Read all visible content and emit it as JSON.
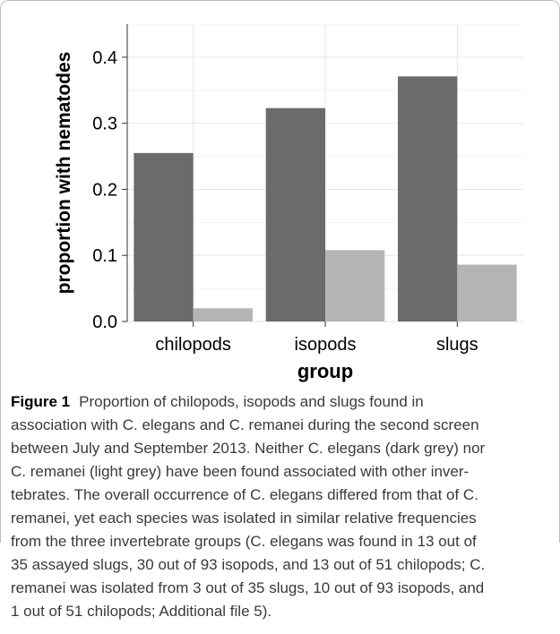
{
  "chart_data": {
    "type": "bar",
    "categories": [
      "chilopods",
      "isopods",
      "slugs"
    ],
    "series": [
      {
        "name": "C. elegans",
        "color": "#6b6b6b",
        "values": [
          0.255,
          0.323,
          0.371
        ]
      },
      {
        "name": "C. remanei",
        "color": "#b5b5b5",
        "values": [
          0.02,
          0.108,
          0.086
        ]
      }
    ],
    "xlabel": "group",
    "ylabel": "proportion with nematodes",
    "ylim": [
      0,
      0.45
    ],
    "yticks": [
      "0.0",
      "0.1",
      "0.2",
      "0.3",
      "0.4"
    ],
    "grid": true,
    "legend": "none"
  },
  "caption": {
    "label": "Figure 1",
    "lines": [
      "Proportion of chilopods, isopods and slugs found in",
      "association with C. elegans and C. remanei during the second screen",
      "between July and September 2013. Neither C. elegans (dark grey) nor",
      "C. remanei (light grey) have been found associated with other inver-",
      "tebrates. The overall occurrence of C. elegans differed from that of C.",
      "remanei, yet each species was isolated in similar relative frequencies",
      "from the three invertebrate groups (C. elegans was found in 13 out of",
      "35 assayed slugs, 30 out of 93 isopods, and 13 out of 51 chilopods; C.",
      "remanei was isolated from 3 out of 35 slugs, 10 out of 93 isopods, and",
      "1 out of 51 chilopods; Additional file 5)."
    ]
  }
}
